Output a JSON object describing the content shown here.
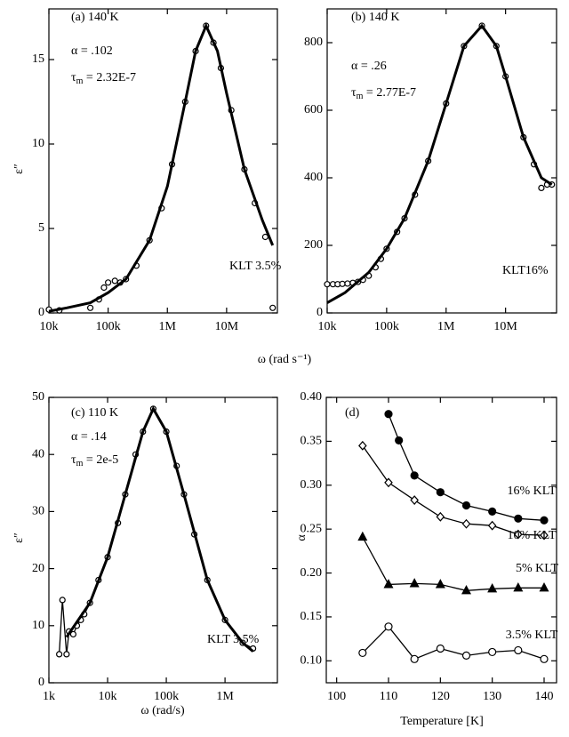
{
  "chart_data": [
    {
      "type": "line",
      "xlog": true,
      "xlim": [
        10000,
        72000000
      ],
      "ylim": [
        0,
        18
      ],
      "xticks": [
        {
          "value": 10000,
          "label": "10k"
        },
        {
          "value": 100000,
          "label": "100k"
        },
        {
          "value": 1000000,
          "label": "1M"
        },
        {
          "value": 10000000,
          "label": "10M"
        }
      ],
      "yticks": [
        0,
        5,
        10,
        15
      ],
      "ylabel": "ε″",
      "xlabel": "ω (rad s⁻¹)",
      "annotations": [
        "(a) 140 K",
        "α = .102",
        {
          "symbol": "τ",
          "sub": "m",
          "text": " = 2.32E-7"
        },
        "KLT 3.5%"
      ],
      "series": [
        {
          "color": "#000",
          "marker": "circle-open",
          "line": false,
          "x": [
            10000,
            15000,
            50000,
            70000,
            85000,
            100000,
            130000,
            160000,
            200000,
            300000,
            500000,
            800000,
            1200000,
            2000000,
            3000000,
            4500000,
            6000000,
            8000000,
            12000000,
            20000000,
            30000000,
            45000000,
            60000000
          ],
          "values": [
            0.2,
            0.15,
            0.3,
            0.8,
            1.5,
            1.8,
            1.9,
            1.8,
            2.0,
            2.8,
            4.3,
            6.2,
            8.8,
            12.5,
            15.5,
            17.0,
            16.0,
            14.5,
            12.0,
            8.5,
            6.5,
            4.5,
            0.3
          ]
        },
        {
          "color": "#000",
          "marker": "none",
          "line": true,
          "x": [
            10000,
            20000,
            50000,
            100000,
            200000,
            500000,
            1000000,
            2000000,
            3000000,
            4500000,
            7000000,
            10000000,
            20000000,
            40000000,
            60000000
          ],
          "values": [
            0.1,
            0.3,
            0.6,
            1.2,
            2.0,
            4.3,
            7.5,
            12.5,
            15.5,
            17.0,
            15.5,
            13.0,
            8.5,
            5.5,
            4.0
          ]
        }
      ]
    },
    {
      "type": "line",
      "xlog": true,
      "xlim": [
        10000,
        72000000
      ],
      "ylim": [
        0,
        900
      ],
      "xticks": [
        {
          "value": 10000,
          "label": "10k"
        },
        {
          "value": 100000,
          "label": "100k"
        },
        {
          "value": 1000000,
          "label": "1M"
        },
        {
          "value": 10000000,
          "label": "10M"
        }
      ],
      "yticks": [
        0,
        200,
        400,
        600,
        800
      ],
      "annotations": [
        "(b) 140 K",
        "α = .26",
        {
          "symbol": "τ",
          "sub": "m",
          "text": " = 2.77E-7"
        },
        "KLT16%"
      ],
      "series": [
        {
          "color": "#000",
          "marker": "circle-open",
          "line": false,
          "x": [
            10000,
            12500,
            15000,
            18000,
            22000,
            27000,
            33000,
            40000,
            50000,
            65000,
            80000,
            100000,
            150000,
            200000,
            300000,
            500000,
            1000000,
            2000000,
            4000000,
            7000000,
            10000000,
            20000000,
            30000000,
            40000000,
            50000000,
            60000000
          ],
          "values": [
            85,
            85,
            85,
            86,
            87,
            89,
            92,
            98,
            110,
            135,
            160,
            190,
            240,
            280,
            350,
            450,
            620,
            790,
            850,
            790,
            700,
            520,
            440,
            370,
            380,
            380
          ]
        },
        {
          "color": "#000",
          "marker": "none",
          "line": true,
          "x": [
            10000,
            20000,
            50000,
            100000,
            200000,
            500000,
            1000000,
            2000000,
            4000000,
            7000000,
            10000000,
            20000000,
            40000000,
            60000000
          ],
          "values": [
            30,
            60,
            120,
            190,
            280,
            450,
            620,
            790,
            850,
            790,
            700,
            520,
            400,
            380
          ]
        }
      ]
    },
    {
      "type": "line",
      "xlog": true,
      "xlim": [
        1000,
        7800000
      ],
      "ylim": [
        0,
        50
      ],
      "xticks": [
        {
          "value": 1000,
          "label": "1k"
        },
        {
          "value": 10000,
          "label": "10k"
        },
        {
          "value": 100000,
          "label": "100k"
        },
        {
          "value": 1000000,
          "label": "1M"
        }
      ],
      "yticks": [
        0,
        10,
        20,
        30,
        40,
        50
      ],
      "ylabel": "ε″",
      "xlabel": "ω (rad/s)",
      "annotations": [
        "(c) 110 K",
        "α = .14",
        {
          "symbol": "τ",
          "sub": "m",
          "text": " = 2e-5"
        },
        "KLT 3.5%"
      ],
      "series": [
        {
          "color": "#000",
          "marker": "circle-open",
          "line": true,
          "x": [
            1500,
            1700,
            2000,
            2200,
            2600,
            3000,
            3500,
            4000,
            5000,
            7000,
            10000,
            15000,
            20000,
            30000,
            40000,
            60000,
            100000,
            150000,
            200000,
            300000,
            500000,
            1000000,
            2000000,
            3000000
          ],
          "values": [
            5,
            14.5,
            5,
            9,
            8.5,
            10,
            11,
            12,
            14,
            18,
            22,
            28,
            33,
            40,
            44,
            48,
            44,
            38,
            33,
            26,
            18,
            11,
            7,
            6
          ]
        },
        {
          "color": "#000",
          "marker": "none",
          "line": true,
          "x": [
            2000,
            5000,
            10000,
            20000,
            40000,
            60000,
            100000,
            200000,
            500000,
            1000000,
            2000000,
            3000000
          ],
          "values": [
            8,
            14,
            22,
            33,
            44,
            48,
            44,
            33,
            18,
            11,
            7,
            5.5
          ]
        }
      ]
    },
    {
      "type": "line",
      "xlog": false,
      "xlim": [
        98,
        142.4
      ],
      "ylim": [
        0.075,
        0.4
      ],
      "xticks": [
        100,
        110,
        120,
        130,
        140
      ],
      "yticks": [
        {
          "value": 0.1,
          "label": "0.10"
        },
        {
          "value": 0.15,
          "label": "0.15"
        },
        {
          "value": 0.2,
          "label": "0.20"
        },
        {
          "value": 0.25,
          "label": "0.25"
        },
        {
          "value": 0.3,
          "label": "0.30"
        },
        {
          "value": 0.35,
          "label": "0.35"
        },
        {
          "value": 0.4,
          "label": "0.40"
        }
      ],
      "ylabel": "α",
      "xlabel": "Temperature [K]",
      "annotations": [
        "(d)"
      ],
      "series": [
        {
          "name": "16% KLT",
          "color": "#000",
          "marker": "circle-filled",
          "line": true,
          "x": [
            110,
            112,
            115,
            120,
            125,
            130,
            135,
            140
          ],
          "values": [
            0.381,
            0.351,
            0.311,
            0.292,
            0.277,
            0.27,
            0.262,
            0.26
          ]
        },
        {
          "name": "10% KLT",
          "color": "#000",
          "marker": "diamond-open",
          "line": true,
          "x": [
            105,
            110,
            115,
            120,
            125,
            130,
            135,
            140
          ],
          "values": [
            0.345,
            0.303,
            0.283,
            0.264,
            0.256,
            0.254,
            0.244,
            0.243
          ]
        },
        {
          "name": "5% KLT",
          "color": "#000",
          "marker": "triangle-filled",
          "line": true,
          "x": [
            105,
            110,
            115,
            120,
            125,
            130,
            135,
            140
          ],
          "values": [
            0.241,
            0.187,
            0.188,
            0.187,
            0.18,
            0.182,
            0.183,
            0.183
          ]
        },
        {
          "name": "3.5% KLT",
          "color": "#000",
          "marker": "circle-open",
          "line": true,
          "x": [
            105,
            110,
            115,
            120,
            125,
            130,
            135,
            140
          ],
          "values": [
            0.109,
            0.139,
            0.102,
            0.114,
            0.106,
            0.11,
            0.112,
            0.102
          ]
        }
      ]
    }
  ]
}
